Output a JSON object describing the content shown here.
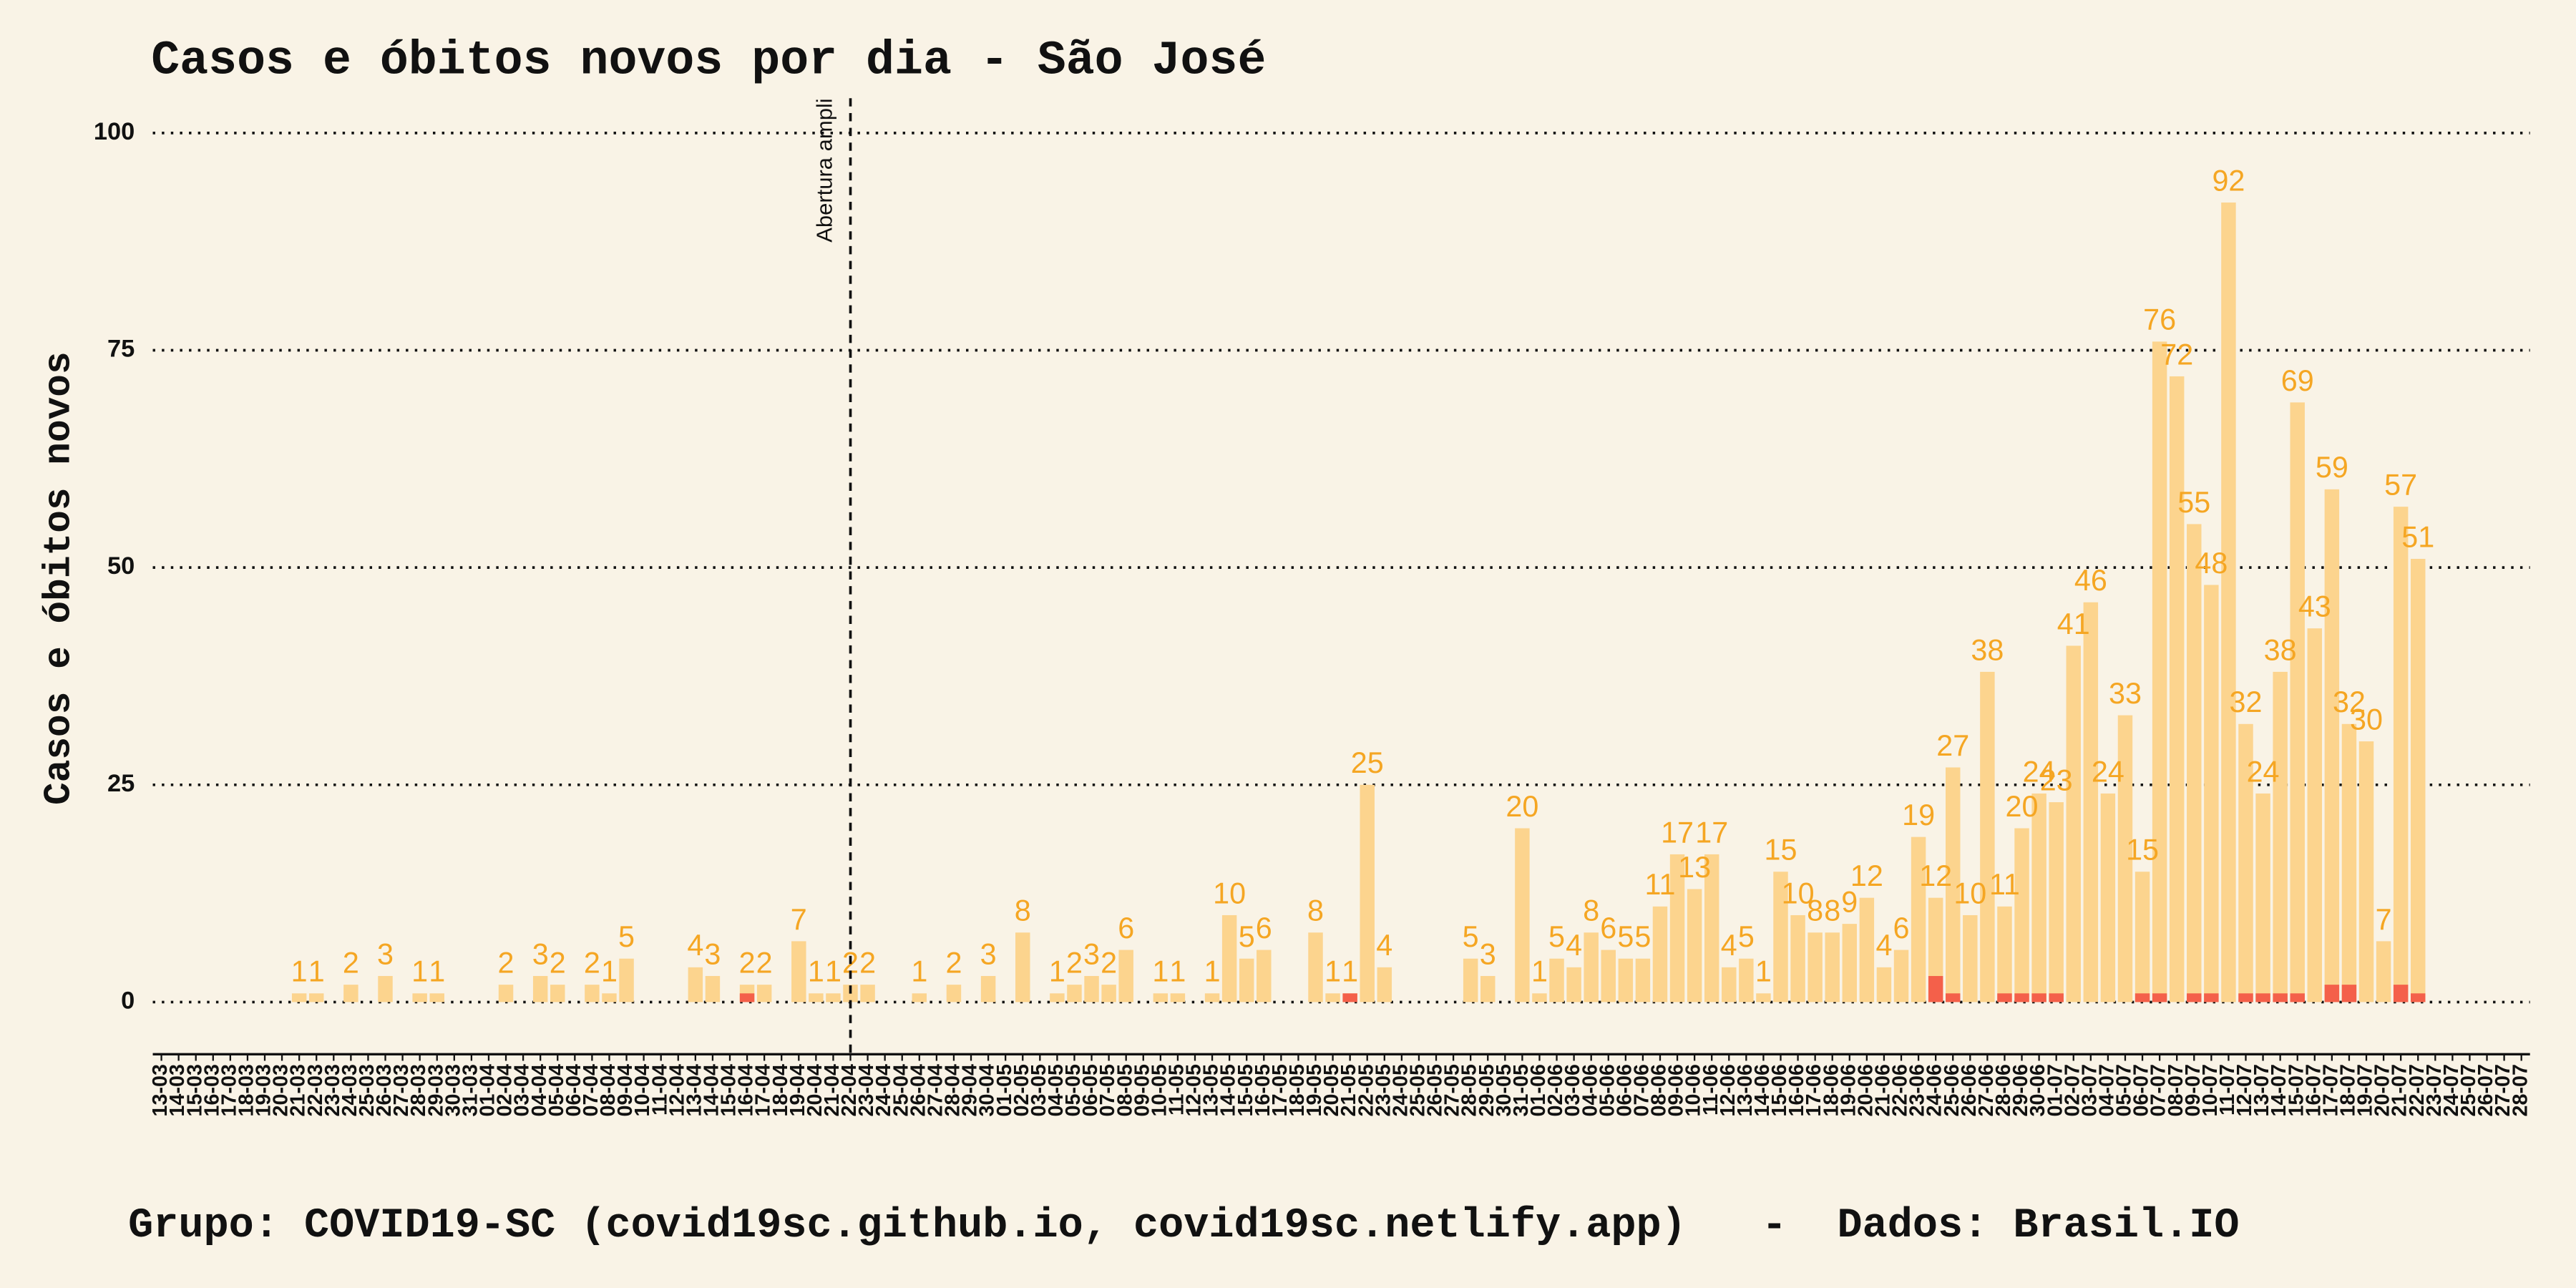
{
  "chart_data": {
    "type": "bar",
    "title": "Casos e óbitos novos por dia -  São José",
    "ylabel": "Casos e óbitos novos",
    "caption": "Grupo: COVID19-SC (covid19sc.github.io, covid19sc.netlify.app)   -  Dados: Brasil.IO",
    "annotation": {
      "text": "Abertura ampli",
      "x": "22-04"
    },
    "categories": [
      "13-03",
      "14-03",
      "15-03",
      "16-03",
      "17-03",
      "18-03",
      "19-03",
      "20-03",
      "21-03",
      "22-03",
      "23-03",
      "24-03",
      "25-03",
      "26-03",
      "27-03",
      "28-03",
      "29-03",
      "30-03",
      "31-03",
      "01-04",
      "02-04",
      "03-04",
      "04-04",
      "05-04",
      "06-04",
      "07-04",
      "08-04",
      "09-04",
      "10-04",
      "11-04",
      "12-04",
      "13-04",
      "14-04",
      "15-04",
      "16-04",
      "17-04",
      "18-04",
      "19-04",
      "20-04",
      "21-04",
      "22-04",
      "23-04",
      "24-04",
      "25-04",
      "26-04",
      "27-04",
      "28-04",
      "29-04",
      "30-04",
      "01-05",
      "02-05",
      "03-05",
      "04-05",
      "05-05",
      "06-05",
      "07-05",
      "08-05",
      "09-05",
      "10-05",
      "11-05",
      "12-05",
      "13-05",
      "14-05",
      "15-05",
      "16-05",
      "17-05",
      "18-05",
      "19-05",
      "20-05",
      "21-05",
      "22-05",
      "23-05",
      "24-05",
      "25-05",
      "26-05",
      "27-05",
      "28-05",
      "29-05",
      "30-05",
      "31-05",
      "01-06",
      "02-06",
      "03-06",
      "04-06",
      "05-06",
      "06-06",
      "07-06",
      "08-06",
      "09-06",
      "10-06",
      "11-06",
      "12-06",
      "13-06",
      "14-06",
      "15-06",
      "16-06",
      "17-06",
      "18-06",
      "19-06",
      "20-06",
      "21-06",
      "22-06",
      "23-06",
      "24-06",
      "25-06",
      "26-06",
      "27-06",
      "28-06",
      "29-06",
      "30-06",
      "01-07",
      "02-07",
      "03-07",
      "04-07",
      "05-07",
      "06-07",
      "07-07",
      "08-07",
      "09-07",
      "10-07",
      "11-07",
      "12-07",
      "13-07",
      "14-07",
      "15-07",
      "16-07",
      "17-07",
      "18-07",
      "19-07",
      "20-07",
      "21-07",
      "22-07",
      "23-07",
      "24-07",
      "25-07",
      "26-07",
      "27-07",
      "28-07"
    ],
    "series": [
      {
        "name": "Casos",
        "color": "#fcd48e",
        "label_color": "#f5a623",
        "values": [
          0,
          0,
          0,
          0,
          0,
          0,
          0,
          0,
          1,
          1,
          0,
          2,
          0,
          3,
          0,
          1,
          1,
          0,
          0,
          0,
          2,
          0,
          3,
          2,
          0,
          2,
          1,
          5,
          0,
          0,
          0,
          4,
          3,
          0,
          2,
          2,
          0,
          7,
          1,
          1,
          2,
          2,
          0,
          0,
          1,
          0,
          2,
          0,
          3,
          0,
          8,
          0,
          1,
          2,
          3,
          2,
          6,
          0,
          1,
          1,
          0,
          1,
          10,
          5,
          6,
          0,
          0,
          8,
          1,
          1,
          25,
          4,
          0,
          0,
          0,
          0,
          5,
          3,
          0,
          20,
          1,
          5,
          4,
          8,
          6,
          5,
          5,
          11,
          17,
          13,
          17,
          4,
          5,
          1,
          15,
          10,
          8,
          8,
          9,
          12,
          4,
          6,
          19,
          12,
          27,
          10,
          38,
          11,
          20,
          24,
          23,
          41,
          46,
          24,
          33,
          15,
          76,
          72,
          55,
          48,
          92,
          32,
          24,
          38,
          69,
          43,
          59,
          32,
          30,
          7,
          57,
          51,
          0,
          0,
          0,
          0,
          0,
          0
        ]
      },
      {
        "name": "Óbitos",
        "color": "#f4604a",
        "values": [
          0,
          0,
          0,
          0,
          0,
          0,
          0,
          0,
          0,
          0,
          0,
          0,
          0,
          0,
          0,
          0,
          0,
          0,
          0,
          0,
          0,
          0,
          0,
          0,
          0,
          0,
          0,
          0,
          0,
          0,
          0,
          0,
          0,
          0,
          1,
          0,
          0,
          0,
          0,
          0,
          0,
          0,
          0,
          0,
          0,
          0,
          0,
          0,
          0,
          0,
          0,
          0,
          0,
          0,
          0,
          0,
          0,
          0,
          0,
          0,
          0,
          0,
          0,
          0,
          0,
          0,
          0,
          0,
          0,
          1,
          0,
          0,
          0,
          0,
          0,
          0,
          0,
          0,
          0,
          0,
          0,
          0,
          0,
          0,
          0,
          0,
          0,
          0,
          0,
          0,
          0,
          0,
          0,
          0,
          0,
          0,
          0,
          0,
          0,
          0,
          0,
          0,
          0,
          3,
          1,
          0,
          0,
          1,
          1,
          1,
          1,
          0,
          0,
          0,
          0,
          1,
          1,
          0,
          1,
          1,
          0,
          1,
          1,
          1,
          1,
          0,
          2,
          2,
          0,
          0,
          2,
          1,
          0,
          0,
          0,
          0,
          0,
          0
        ]
      }
    ],
    "ylim": [
      -6,
      104
    ],
    "yticks": [
      0,
      25,
      50,
      75,
      100
    ],
    "grid": true
  }
}
